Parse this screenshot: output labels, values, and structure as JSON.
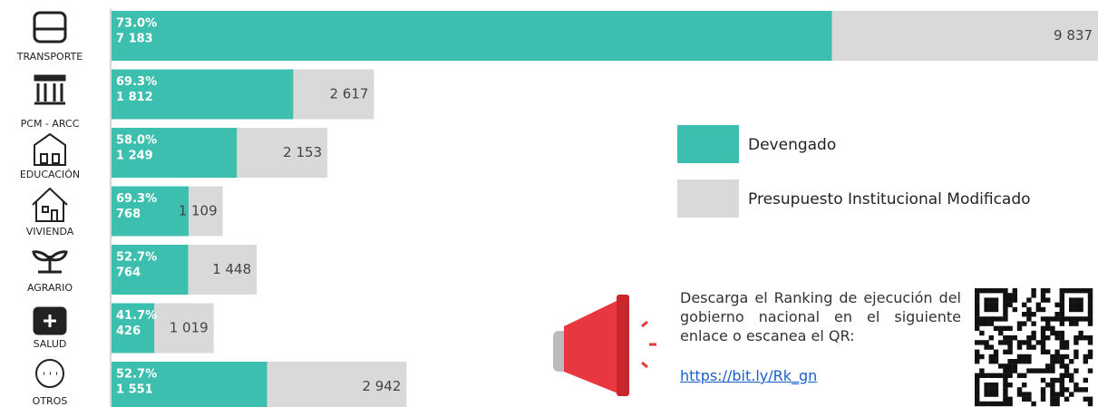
{
  "chart_data": {
    "type": "bar",
    "categories": [
      "TRANSPORTE",
      "PCM - ARCC",
      "EDUCACIÓN",
      "VIVIENDA",
      "AGRARIO",
      "SALUD",
      "OTROS"
    ],
    "series": [
      {
        "name": "Devengado",
        "color": "#3dbfb0",
        "values": [
          7183,
          1812,
          1249,
          768,
          764,
          426,
          1551
        ],
        "value_labels": [
          "7 183",
          "1 812",
          "1 249",
          "768",
          "764",
          "426",
          "1 551"
        ]
      },
      {
        "name": "Presupuesto Institucional Modificado",
        "color": "#d9d9d9",
        "values": [
          9837,
          2617,
          2153,
          1109,
          1448,
          1019,
          2942
        ],
        "value_labels": [
          "9 837",
          "2 617",
          "2 153",
          "1 109",
          "1 448",
          "1 019",
          "2 942"
        ]
      }
    ],
    "percentages": [
      73.0,
      69.3,
      58.0,
      69.3,
      52.7,
      41.7,
      52.7
    ],
    "percentage_labels": [
      "73.0%",
      "69.3%",
      "58.0%",
      "69.3%",
      "52.7%",
      "41.7%",
      "52.7%"
    ],
    "xlim": [
      0,
      9837
    ],
    "annotation": "Descarga el Ranking de ejecución del gobierno nacional en el siguiente enlace o escanea el QR:",
    "link": "https://bit.ly/Rk_gn"
  }
}
